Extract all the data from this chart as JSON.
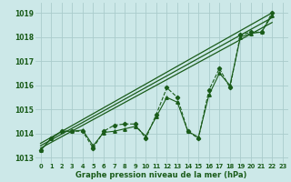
{
  "xlabel": "Graphe pression niveau de la mer (hPa)",
  "bg_color": "#cce8e8",
  "grid_color": "#aacccc",
  "line_color": "#1a5c1a",
  "x_values": [
    0,
    1,
    2,
    3,
    4,
    5,
    6,
    7,
    8,
    9,
    10,
    11,
    12,
    13,
    14,
    15,
    16,
    17,
    18,
    19,
    20,
    21,
    22,
    23
  ],
  "series_jagged": [
    1013.3,
    1013.8,
    1014.1,
    1014.1,
    1014.1,
    1013.4,
    1014.1,
    1014.35,
    1014.4,
    1014.4,
    1013.8,
    1014.8,
    1015.9,
    1015.5,
    1014.1,
    1013.8,
    1015.8,
    1016.7,
    1015.9,
    1018.1,
    1018.2,
    1018.2,
    1019.0,
    null
  ],
  "series_smooth": [
    1013.3,
    1013.8,
    1014.1,
    1014.1,
    1014.15,
    1013.5,
    1014.05,
    1014.1,
    1014.2,
    1014.3,
    1013.9,
    1014.7,
    1015.5,
    1015.3,
    1014.1,
    1013.85,
    1015.6,
    1016.5,
    1016.0,
    1018.0,
    1018.15,
    1018.2,
    1018.9,
    null
  ],
  "trend1_x": [
    0,
    22
  ],
  "trend1_y": [
    1013.5,
    1018.8
  ],
  "trend2_x": [
    0,
    22
  ],
  "trend2_y": [
    1013.6,
    1019.0
  ],
  "trend3_x": [
    0,
    22
  ],
  "trend3_y": [
    1013.4,
    1018.6
  ],
  "ylim": [
    1012.8,
    1019.4
  ],
  "yticks": [
    1013,
    1014,
    1015,
    1016,
    1017,
    1018,
    1019
  ],
  "xlim": [
    -0.5,
    23.5
  ],
  "xtick_labels": [
    "0",
    "1",
    "2",
    "3",
    "4",
    "5",
    "6",
    "7",
    "8",
    "9",
    "10",
    "11",
    "12",
    "13",
    "14",
    "15",
    "16",
    "17",
    "18",
    "19",
    "20",
    "21",
    "22",
    "23"
  ]
}
